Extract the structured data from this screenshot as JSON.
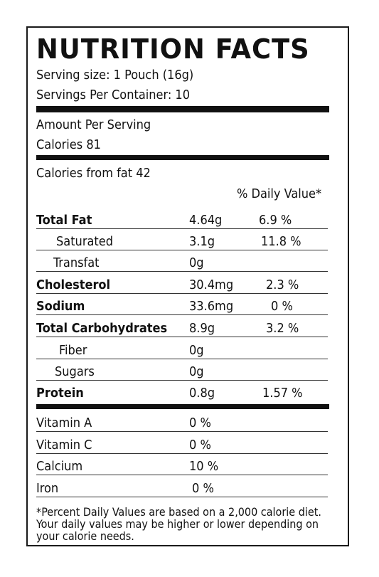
{
  "title": "NUTRITION FACTS",
  "serving_size": "Serving size: 1 Pouch (16g)",
  "servings_per_container": "Servings Per Container: 10",
  "amount_per_serving": "Amount Per Serving",
  "calories": "Calories  81",
  "calories_from_fat": "Calories from fat 42",
  "daily_value_header": "% Daily Value*",
  "nutrients": [
    {
      "name": "Total Fat",
      "amount": "4.64g",
      "dv": "6.9 %"
    },
    {
      "name": "Saturated",
      "amount": "3.1g",
      "dv": "11.8 %"
    },
    {
      "name": "Transfat",
      "amount": "0g",
      "dv": ""
    },
    {
      "name": "Cholesterol",
      "amount": "30.4mg",
      "dv": "2.3 %"
    },
    {
      "name": "Sodium",
      "amount": "33.6mg",
      "dv": "0 %"
    },
    {
      "name": "Total Carbohydrates",
      "amount": "8.9g",
      "dv": "3.2 %"
    },
    {
      "name": "Fiber",
      "amount": "0g",
      "dv": ""
    },
    {
      "name": "Sugars",
      "amount": "0g",
      "dv": ""
    },
    {
      "name": "Protein",
      "amount": "0.8g",
      "dv": "1.57 %"
    }
  ],
  "vitamins": [
    {
      "name": "Vitamin A",
      "dv": "0 %"
    },
    {
      "name": "Vitamin C",
      "dv": "0 %"
    },
    {
      "name": "Calcium",
      "dv": "10 %"
    },
    {
      "name": "Iron",
      "dv": "0 %"
    }
  ],
  "footnote": "*Percent Daily Values are based on a 2,000 calorie diet. Your daily values may be higher or lower depending on your calorie needs."
}
